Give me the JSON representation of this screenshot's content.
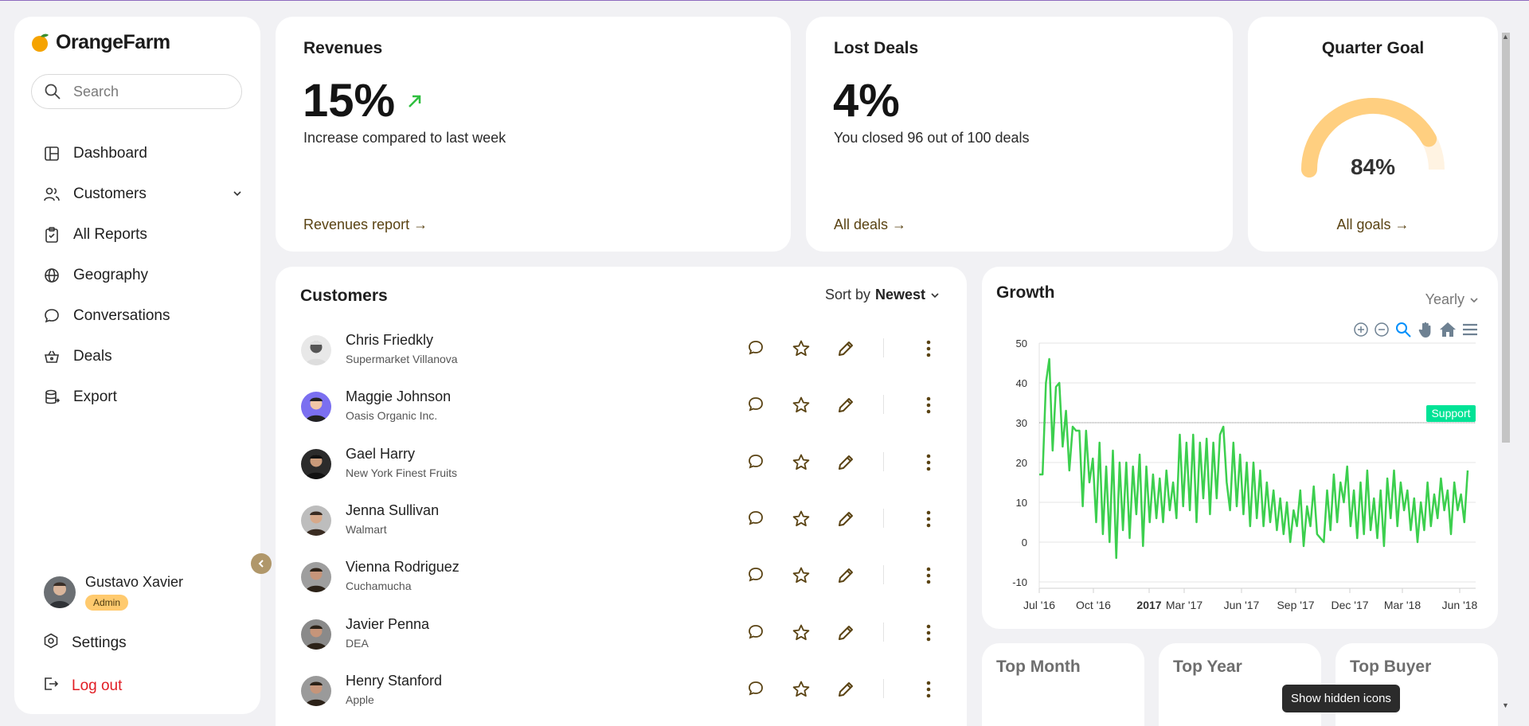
{
  "app": {
    "name": "OrangeFarm"
  },
  "search": {
    "placeholder": "Search"
  },
  "nav": {
    "items": [
      {
        "label": "Dashboard",
        "icon": "dashboard-icon"
      },
      {
        "label": "Customers",
        "icon": "users-icon"
      },
      {
        "label": "All Reports",
        "icon": "clipboard-icon"
      },
      {
        "label": "Geography",
        "icon": "globe-icon"
      },
      {
        "label": "Conversations",
        "icon": "chat-icon"
      },
      {
        "label": "Deals",
        "icon": "basket-icon"
      },
      {
        "label": "Export",
        "icon": "database-icon"
      }
    ]
  },
  "user": {
    "name": "Gustavo Xavier",
    "role": "Admin"
  },
  "settings_label": "Settings",
  "logout_label": "Log out",
  "revenues": {
    "title": "Revenues",
    "value": "15%",
    "desc": "Increase compared to last week",
    "link": "Revenues report →"
  },
  "lost_deals": {
    "title": "Lost Deals",
    "value": "4%",
    "desc": "You closed 96 out of 100 deals",
    "link": "All deals →"
  },
  "quarter_goal": {
    "title": "Quarter Goal",
    "value": "84%",
    "progress": 0.84,
    "link": "All goals →"
  },
  "customers": {
    "title": "Customers",
    "sort_prefix": "Sort by",
    "sort_value": "Newest",
    "rows": [
      {
        "name": "Chris Friedkly",
        "company": "Supermarket Villanova"
      },
      {
        "name": "Maggie Johnson",
        "company": "Oasis Organic Inc."
      },
      {
        "name": "Gael Harry",
        "company": "New York Finest Fruits"
      },
      {
        "name": "Jenna Sullivan",
        "company": "Walmart"
      },
      {
        "name": "Vienna Rodriguez",
        "company": "Cuchamucha"
      },
      {
        "name": "Javier Penna",
        "company": "DEA"
      },
      {
        "name": "Henry Stanford",
        "company": "Apple"
      }
    ]
  },
  "growth": {
    "title": "Growth",
    "period": "Yearly",
    "chart_data": {
      "type": "line",
      "ylim": [
        -10,
        50
      ],
      "y_ticks": [
        50,
        40,
        30,
        20,
        10,
        0,
        -10
      ],
      "x_ticks": [
        "Jul '16",
        "Oct '16",
        "2017",
        "Mar '17",
        "Jun '17",
        "Sep '17",
        "Dec '17",
        "Mar '18",
        "Jun '18"
      ],
      "annotation": {
        "label": "Support",
        "y": 30
      },
      "color": "#3ccf4e",
      "series": [
        {
          "values": [
            17,
            17,
            40,
            46,
            23,
            39,
            40,
            24,
            33,
            18,
            29,
            28,
            28,
            9,
            28,
            15,
            21,
            5,
            25,
            2,
            19,
            0,
            23,
            -4,
            20,
            3,
            20,
            1,
            19,
            7,
            22,
            -1,
            19,
            5,
            17,
            6,
            16,
            5,
            18,
            8,
            15,
            6,
            27,
            9,
            25,
            8,
            27,
            5,
            25,
            11,
            26,
            7,
            25,
            11,
            27,
            29,
            15,
            8,
            25,
            9,
            22,
            7,
            20,
            4,
            20,
            6,
            18,
            4,
            15,
            5,
            13,
            3,
            11,
            2,
            10,
            0,
            8,
            4,
            13,
            -1,
            9,
            4,
            14,
            2,
            1,
            0,
            13,
            3,
            17,
            5,
            15,
            10,
            19,
            4,
            13,
            1,
            15,
            2,
            18,
            3,
            11,
            1,
            13,
            -1,
            16,
            6,
            18,
            4,
            15,
            8,
            13,
            3,
            11,
            0,
            10,
            3,
            15,
            4,
            12,
            6,
            16,
            8,
            13,
            2,
            15,
            8,
            12,
            5,
            18
          ]
        }
      ]
    }
  },
  "top_month": {
    "title": "Top Month"
  },
  "top_year": {
    "title": "Top Year"
  },
  "top_buyer": {
    "title": "Top Buyer"
  },
  "tooltip": "Show hidden icons"
}
